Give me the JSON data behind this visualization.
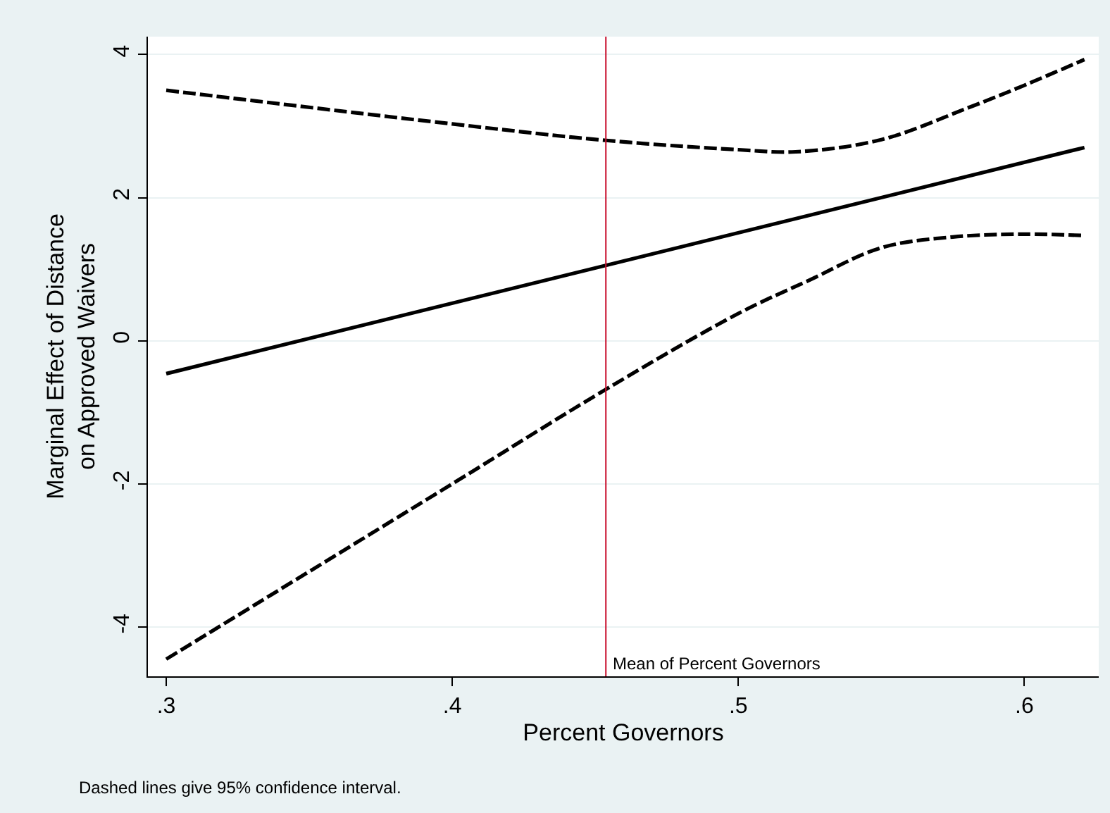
{
  "chart_data": {
    "type": "line",
    "xlabel": "Percent Governors",
    "ylabel": "Marginal Effect of Distance\non Approved Waivers",
    "xlim": [
      0.2936,
      0.626
    ],
    "xticks": [
      {
        "value": 0.3,
        "label": ".3"
      },
      {
        "value": 0.4,
        "label": ".4"
      },
      {
        "value": 0.5,
        "label": ".5"
      },
      {
        "value": 0.6,
        "label": ".6"
      }
    ],
    "ylim": [
      -4.69,
      4.25
    ],
    "yticks": [
      -4,
      -2,
      0,
      2,
      4
    ],
    "grid": "y",
    "series": [
      {
        "color": "#000000",
        "line_style": "solid",
        "x": [
          0.3,
          0.621
        ],
        "values": [
          -0.46,
          2.7
        ]
      },
      {
        "color": "#000000",
        "line_style": "dashed",
        "x": [
          0.3,
          0.4,
          0.4537,
          0.5,
          0.52,
          0.55,
          0.58,
          0.6,
          0.621
        ],
        "values": [
          3.5,
          3.03,
          2.8,
          2.67,
          2.64,
          2.81,
          3.25,
          3.57,
          3.93
        ]
      },
      {
        "color": "#000000",
        "line_style": "dashed",
        "x": [
          0.3,
          0.4,
          0.4537,
          0.5,
          0.525,
          0.55,
          0.575,
          0.6,
          0.621
        ],
        "values": [
          -4.45,
          -2.0,
          -0.68,
          0.38,
          0.85,
          1.3,
          1.45,
          1.49,
          1.47
        ]
      }
    ],
    "ref_lines": [
      {
        "axis": "x",
        "value": 0.4537,
        "label": "Mean of Percent Governors",
        "color": "#c8102e"
      }
    ],
    "annotations": [
      "Dashed lines give 95% confidence interval."
    ]
  }
}
